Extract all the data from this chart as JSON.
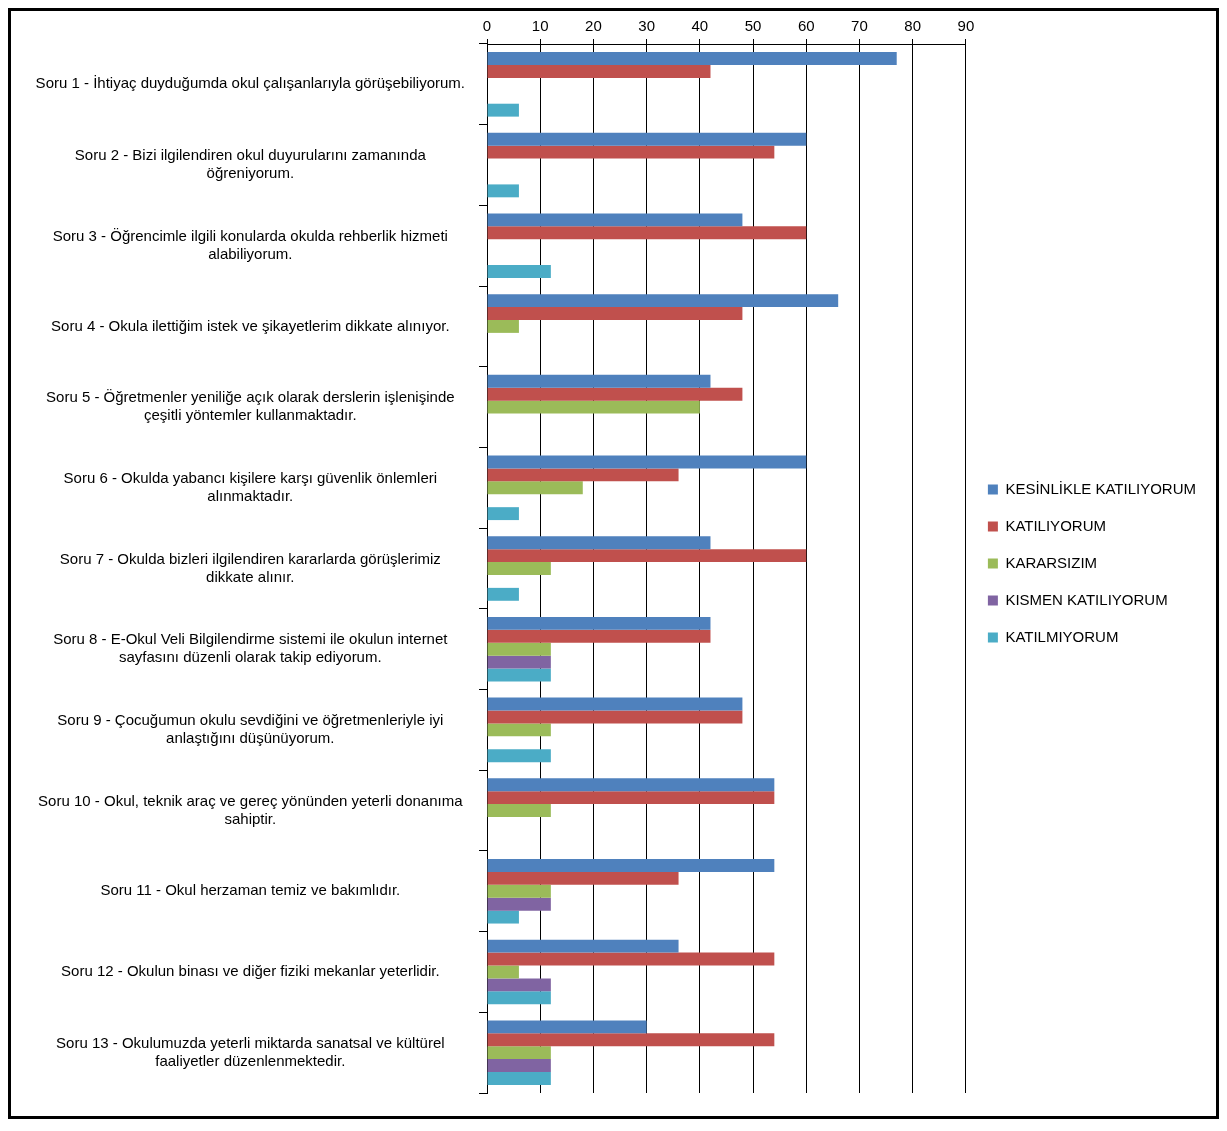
{
  "chart_data": {
    "type": "bar",
    "orientation": "horizontal",
    "categories": [
      "Soru 1 - İhtiyaç duyduğumda okul çalışanlarıyla görüşebiliyorum.",
      "Soru 2 - Bizi ilgilendiren okul duyurularını zamanında öğreniyorum.",
      "Soru 3 - Öğrencimle ilgili konularda okulda rehberlik hizmeti alabiliyorum.",
      "Soru 4 - Okula ilettiğim istek ve şikayetlerim dikkate alınıyor.",
      "Soru 5 - Öğretmenler yeniliğe açık olarak derslerin işlenişinde çeşitli yöntemler kullanmaktadır.",
      "Soru 6 - Okulda yabancı kişilere karşı güvenlik önlemleri alınmaktadır.",
      "Soru 7 - Okulda bizleri ilgilendiren kararlarda görüşlerimiz dikkate alınır.",
      "Soru 8 - E-Okul Veli Bilgilendirme sistemi ile okulun internet sayfasını düzenli olarak takip ediyorum.",
      "Soru 9 - Çocuğumun okulu sevdiğini ve öğretmenleriyle iyi anlaştığını düşünüyorum.",
      "Soru 10 - Okul, teknik araç ve gereç yönünden yeterli donanıma sahiptir.",
      "Soru 11 - Okul herzaman temiz ve bakımlıdır.",
      "Soru 12 - Okulun binası ve diğer fiziki mekanlar yeterlidir.",
      "Soru 13 - Okulumuzda yeterli miktarda sanatsal ve kültürel faaliyetler düzenlenmektedir."
    ],
    "series": [
      {
        "name": "KESİNLİKLE KATILIYORUM",
        "color": "#4f81bd",
        "values": [
          77,
          60,
          48,
          66,
          42,
          60,
          42,
          42,
          48,
          54,
          54,
          36,
          30
        ]
      },
      {
        "name": "KATILIYORUM",
        "color": "#c0504d",
        "values": [
          42,
          54,
          60,
          48,
          48,
          36,
          60,
          42,
          48,
          54,
          36,
          54,
          54
        ]
      },
      {
        "name": "KARARSIZIM",
        "color": "#9bbb59",
        "values": [
          null,
          null,
          null,
          6,
          40,
          18,
          12,
          12,
          12,
          12,
          12,
          6,
          12
        ]
      },
      {
        "name": "KISMEN KATILIYORUM",
        "color": "#8064a2",
        "values": [
          null,
          null,
          null,
          null,
          null,
          null,
          null,
          12,
          null,
          null,
          12,
          12,
          12
        ]
      },
      {
        "name": "KATILMIYORUM",
        "color": "#4bacc6",
        "values": [
          6,
          6,
          12,
          null,
          null,
          6,
          6,
          12,
          12,
          null,
          6,
          12,
          12
        ]
      }
    ],
    "xlim": [
      0,
      90
    ],
    "xticks": [
      0,
      10,
      20,
      30,
      40,
      50,
      60,
      70,
      80,
      90
    ],
    "grid": "x",
    "legend": "right"
  }
}
